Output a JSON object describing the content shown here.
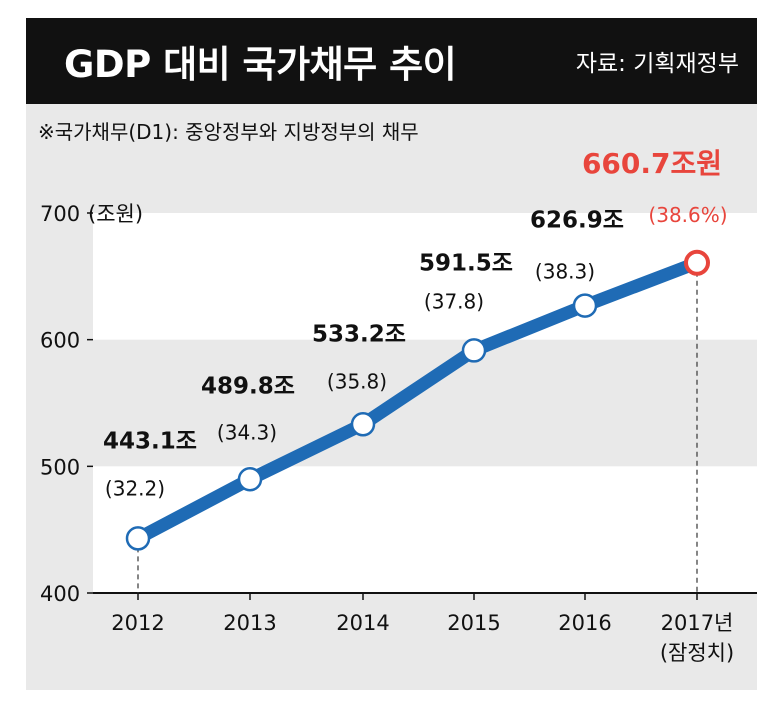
{
  "header": {
    "title": "GDP 대비 국가채무 추이",
    "source": "자료: 기획재정부"
  },
  "note": "※국가채무(D1): 중앙정부와 지방정부의 채무",
  "chart_data": {
    "type": "line",
    "title": "GDP 대비 국가채무 추이",
    "unit_label": "(조원)",
    "categories": [
      "2012",
      "2013",
      "2014",
      "2015",
      "2016",
      "2017년"
    ],
    "category_sublabels": [
      "",
      "",
      "",
      "",
      "",
      "(잠정치)"
    ],
    "series": [
      {
        "values": [
          443.1,
          489.8,
          533.2,
          591.5,
          626.9,
          660.7
        ],
        "value_labels": [
          "443.1조",
          "489.8조",
          "533.2조",
          "591.5조",
          "626.9조",
          "660.7조원"
        ],
        "ratio_labels": [
          "(32.2)",
          "(34.3)",
          "(35.8)",
          "(37.8)",
          "(38.3)",
          "(38.6%)"
        ]
      }
    ],
    "y_ticks": [
      400,
      500,
      600,
      700
    ],
    "ylim": [
      400,
      700
    ],
    "colors": {
      "line": "#1f6bb5",
      "highlight": "#e8453c",
      "panel": "#e9e9e9",
      "band": "#ffffff"
    }
  }
}
